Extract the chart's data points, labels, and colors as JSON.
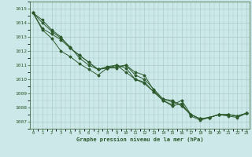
{
  "title": "Graphe pression niveau de la mer (hPa)",
  "bg_color": "#cce8e8",
  "grid_color": "#aacccc",
  "line_color": "#2d5a2d",
  "xlim": [
    0,
    23
  ],
  "ylim": [
    1006.5,
    1015.5
  ],
  "yticks": [
    1007,
    1008,
    1009,
    1010,
    1011,
    1012,
    1013,
    1014,
    1015
  ],
  "xticks": [
    0,
    1,
    2,
    3,
    4,
    5,
    6,
    7,
    8,
    9,
    10,
    11,
    12,
    13,
    14,
    15,
    16,
    17,
    18,
    19,
    20,
    21,
    22,
    23
  ],
  "series": [
    [
      1014.7,
      1014.2,
      1013.5,
      1013.0,
      1012.2,
      1011.7,
      1011.2,
      1010.7,
      1010.8,
      1010.8,
      1011.0,
      1010.5,
      1010.3,
      1009.2,
      1008.6,
      1008.5,
      1008.1,
      1007.5,
      1007.2,
      1007.3,
      1007.5,
      1007.5,
      1007.4,
      1007.6
    ],
    [
      1014.7,
      1013.5,
      1012.9,
      1012.0,
      1011.6,
      1011.1,
      1010.7,
      1010.3,
      1010.8,
      1011.0,
      1010.8,
      1010.0,
      1009.8,
      1009.1,
      1008.5,
      1008.2,
      1008.5,
      1007.5,
      1007.2,
      1007.3,
      1007.5,
      1007.5,
      1007.4,
      1007.6
    ],
    [
      1014.7,
      1013.6,
      1013.2,
      1012.8,
      1012.2,
      1011.7,
      1011.2,
      1010.7,
      1010.8,
      1010.9,
      1011.0,
      1010.3,
      1010.0,
      1009.3,
      1008.6,
      1008.4,
      1008.2,
      1007.5,
      1007.2,
      1007.3,
      1007.5,
      1007.5,
      1007.4,
      1007.6
    ],
    [
      1014.7,
      1014.0,
      1013.4,
      1012.9,
      1012.3,
      1011.5,
      1011.0,
      1010.7,
      1010.9,
      1011.0,
      1010.5,
      1010.0,
      1009.7,
      1009.1,
      1008.5,
      1008.1,
      1008.3,
      1007.4,
      1007.1,
      1007.3,
      1007.5,
      1007.4,
      1007.3,
      1007.6
    ]
  ]
}
